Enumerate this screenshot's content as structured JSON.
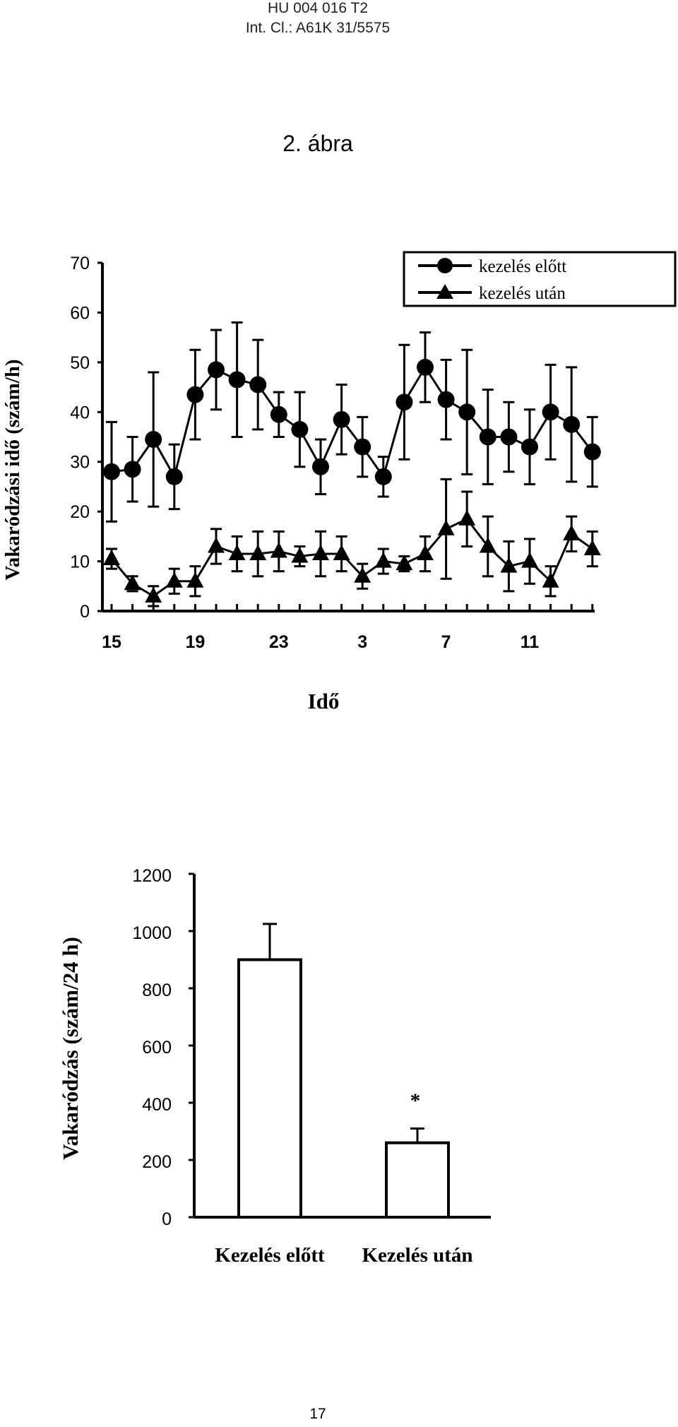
{
  "header": {
    "line1": "HU 004 016 T2",
    "line2": "Int. Cl.: A61K 31/5575"
  },
  "figure_title": "2. ábra",
  "page_number": "17",
  "chart_data": [
    {
      "type": "line",
      "xlabel": "Idő",
      "ylabel": "Vakaródzási idő (szám/h)",
      "ylim": [
        0,
        70
      ],
      "yticks": [
        0,
        10,
        20,
        30,
        40,
        50,
        60,
        70
      ],
      "xtick_labels": [
        "15",
        "19",
        "23",
        "3",
        "7",
        "11"
      ],
      "xtick_indices": [
        0,
        4,
        8,
        12,
        16,
        20
      ],
      "legend": "top-right",
      "series": [
        {
          "name": "kezelés előtt",
          "marker": "circle",
          "values": [
            28,
            28.5,
            34.5,
            27,
            43.5,
            48.5,
            46.5,
            45.5,
            39.5,
            36.5,
            29,
            38.5,
            33,
            27,
            42,
            49,
            42.5,
            40,
            35,
            35,
            33,
            40,
            37.5,
            32
          ],
          "errors": [
            10,
            6.5,
            13.5,
            6.5,
            9,
            8,
            11.5,
            9,
            4.5,
            7.5,
            5.5,
            7,
            6,
            4,
            11.5,
            7,
            8,
            12.5,
            9.5,
            7,
            7.5,
            9.5,
            11.5,
            7
          ]
        },
        {
          "name": "kezelés után",
          "marker": "triangle",
          "values": [
            10.5,
            5.5,
            3,
            6,
            6,
            13,
            11.5,
            11.5,
            12,
            11,
            11.5,
            11.5,
            7,
            10,
            9.5,
            11.5,
            16.5,
            18.5,
            13,
            9,
            10,
            6,
            15.5,
            12.5
          ],
          "errors": [
            2,
            1.5,
            2,
            2.5,
            3,
            3.5,
            3.5,
            4.5,
            4,
            2,
            4.5,
            3.5,
            2.5,
            2.5,
            1.5,
            3.5,
            10,
            5.5,
            6,
            5,
            4.5,
            3,
            3.5,
            3.5
          ]
        }
      ]
    },
    {
      "type": "bar",
      "ylabel": "Vakaródzás (szám/24 h)",
      "ylim": [
        0,
        1200
      ],
      "yticks": [
        0,
        200,
        400,
        600,
        800,
        1000,
        1200
      ],
      "categories": [
        "Kezelés előtt",
        "Kezelés után"
      ],
      "values": [
        900,
        260
      ],
      "errors": [
        125,
        50
      ],
      "annotations": [
        "",
        "*"
      ]
    }
  ]
}
